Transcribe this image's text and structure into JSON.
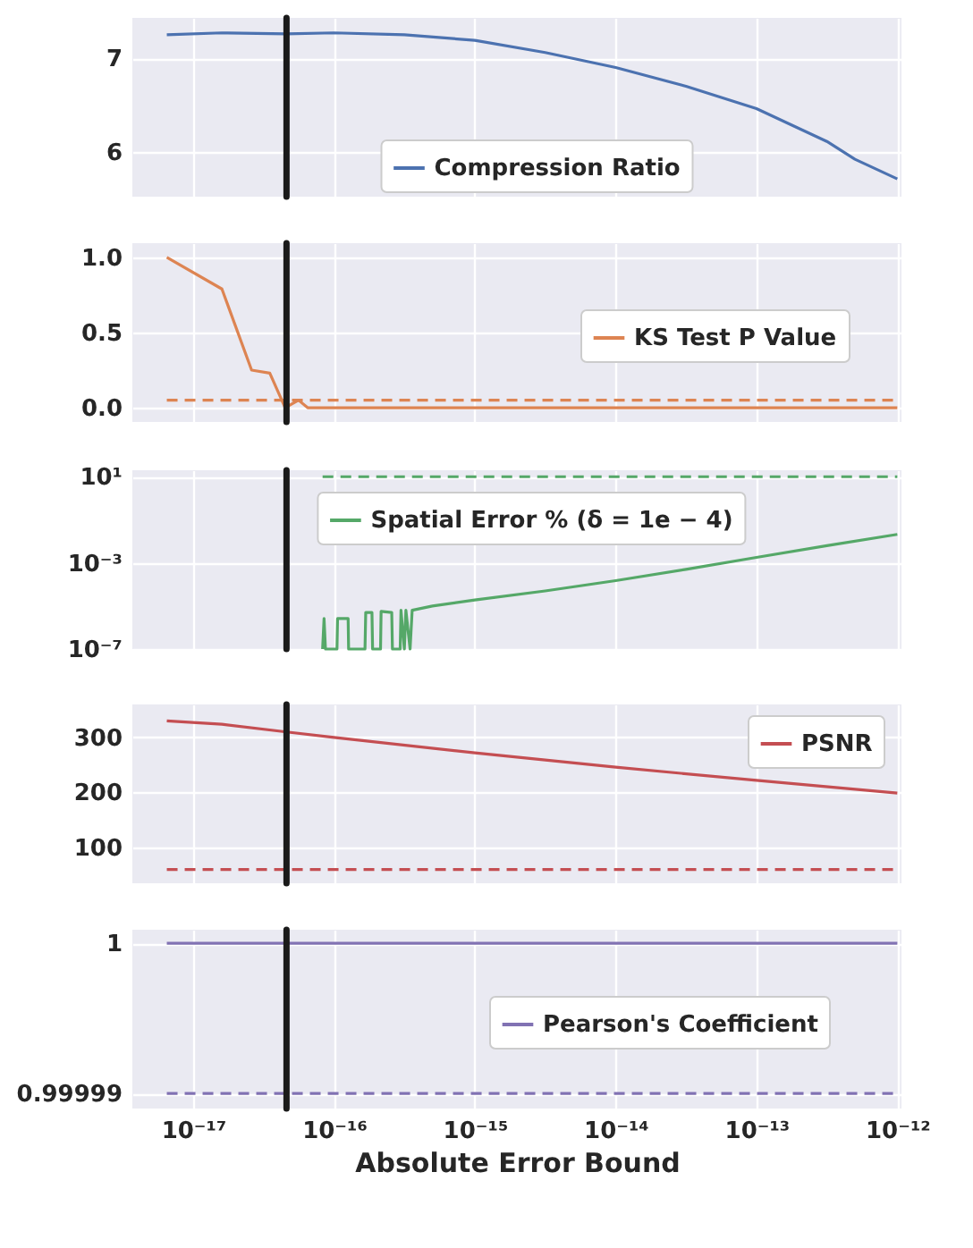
{
  "chart_data": [
    {
      "type": "line",
      "log": "x",
      "grid": true,
      "legend": "bottom",
      "tick_labels": "y",
      "x": [
        6.5e-18,
        1.6e-17,
        4.6e-17,
        1e-16,
        3.16e-16,
        1e-15,
        3.16e-15,
        1e-14,
        3.16e-14,
        1e-13,
        3.16e-13,
        5e-13,
        1e-12
      ],
      "series": [
        {
          "name": "Compression Ratio",
          "color": "#4c72b0",
          "values": [
            7.25,
            7.27,
            7.26,
            7.27,
            7.25,
            7.19,
            7.06,
            6.9,
            6.7,
            6.46,
            6.11,
            5.92,
            5.71
          ]
        }
      ],
      "xlim": [
        3.7e-18,
        1.07e-12
      ],
      "xticks": [
        {
          "value": 1e-17,
          "label": null
        },
        {
          "value": 1e-16,
          "label": null
        },
        {
          "value": 1e-15,
          "label": null
        },
        {
          "value": 1e-14,
          "label": null
        },
        {
          "value": 1e-13,
          "label": null
        },
        {
          "value": 1e-12,
          "label": null
        }
      ],
      "ylim": [
        5.52,
        7.43
      ],
      "yticks": [
        6,
        7
      ],
      "ref_lines": [
        {
          "axis": "x",
          "value": 4.6e-17,
          "color": "#1a1a1a"
        }
      ]
    },
    {
      "type": "line",
      "log": "x",
      "grid": true,
      "legend": "right",
      "tick_labels": "y",
      "x": [
        6.5e-18,
        1.6e-17,
        2.6e-17,
        3.5e-17,
        4.5e-17,
        5.6e-17,
        6.5e-17,
        1e-12
      ],
      "series": [
        {
          "name": "KS Test P Value",
          "color": "#dd8452",
          "values": [
            1.0,
            0.79,
            0.25,
            0.23,
            0.0,
            0.05,
            0.0,
            0.0
          ]
        }
      ],
      "xlim": [
        3.7e-18,
        1.07e-12
      ],
      "xticks": [
        {
          "value": 1e-17,
          "label": null
        },
        {
          "value": 1e-16,
          "label": null
        },
        {
          "value": 1e-15,
          "label": null
        },
        {
          "value": 1e-14,
          "label": null
        },
        {
          "value": 1e-13,
          "label": null
        },
        {
          "value": 1e-12,
          "label": null
        }
      ],
      "ylim": [
        -0.095,
        1.095
      ],
      "yticks": [
        {
          "value": 0,
          "label": "0.0"
        },
        0.5,
        {
          "value": 1,
          "label": "1.0"
        }
      ],
      "ref_lines": [
        {
          "axis": "y",
          "value": 0.05,
          "color": "#dd8452",
          "line_style": "dashed"
        },
        {
          "axis": "x",
          "value": 4.6e-17,
          "color": "#1a1a1a"
        }
      ]
    },
    {
      "type": "line",
      "log": "xy",
      "grid": true,
      "legend": "top",
      "tick_labels": "y",
      "x": [
        8.3e-17,
        8.5e-17,
        8.7e-17,
        1.05e-16,
        1.06e-16,
        1.26e-16,
        1.27e-16,
        1.66e-16,
        1.68e-16,
        1.86e-16,
        1.88e-16,
        2.14e-16,
        2.16e-16,
        2.57e-16,
        2.6e-16,
        2.95e-16,
        2.99e-16,
        3.16e-16,
        3.24e-16,
        3.47e-16,
        3.59e-16,
        5e-16,
        1e-15,
        3.16e-15,
        1e-14,
        3.16e-14,
        1e-13,
        3.16e-13,
        1e-12
      ],
      "series": [
        {
          "name": "Spatial Error % (δ = 1e − 4)",
          "color": "#55a868",
          "values": [
            1e-07,
            2.6e-06,
            1e-07,
            1e-07,
            2.6e-06,
            2.6e-06,
            1e-07,
            1e-07,
            5e-06,
            5e-06,
            1e-07,
            1e-07,
            5.6e-06,
            5e-06,
            1e-07,
            1e-07,
            6.3e-06,
            1e-07,
            6.3e-06,
            1e-07,
            6.3e-06,
            1e-05,
            1.9e-05,
            5e-05,
            0.00015,
            0.0005,
            0.0018,
            0.0063,
            0.021
          ]
        }
      ],
      "xlim": [
        3.7e-18,
        1.07e-12
      ],
      "xticks": [
        {
          "value": 1e-17,
          "label": null
        },
        {
          "value": 1e-16,
          "label": null
        },
        {
          "value": 1e-15,
          "label": null
        },
        {
          "value": 1e-14,
          "label": null
        },
        {
          "value": 1e-13,
          "label": null
        },
        {
          "value": 1e-12,
          "label": null
        }
      ],
      "ylim": [
        1e-07,
        20
      ],
      "yticks": [
        {
          "value": 1e-07,
          "label": "10⁻⁷"
        },
        {
          "value": 0.001,
          "label": "10⁻³"
        },
        {
          "value": 10,
          "label": "10¹"
        }
      ],
      "ref_lines": [
        {
          "axis": "y",
          "value": 10,
          "color": "#55a868",
          "line_style": "dashed"
        },
        {
          "axis": "x",
          "value": 4.6e-17,
          "color": "#1a1a1a"
        }
      ]
    },
    {
      "type": "line",
      "log": "x",
      "grid": true,
      "legend": "top right",
      "tick_labels": "y",
      "x": [
        6.5e-18,
        1.6e-17,
        4.6e-17,
        1e-16,
        1e-15,
        1e-14,
        1e-13,
        1e-12
      ],
      "series": [
        {
          "name": "PSNR",
          "color": "#c44e52",
          "values": [
            330,
            324,
            310,
            300,
            272,
            246,
            222,
            199
          ]
        }
      ],
      "xlim": [
        3.7e-18,
        1.07e-12
      ],
      "xticks": [
        {
          "value": 1e-17,
          "label": null
        },
        {
          "value": 1e-16,
          "label": null
        },
        {
          "value": 1e-15,
          "label": null
        },
        {
          "value": 1e-14,
          "label": null
        },
        {
          "value": 1e-13,
          "label": null
        },
        {
          "value": 1e-12,
          "label": null
        }
      ],
      "ylim": [
        35,
        360
      ],
      "yticks": [
        100,
        200,
        300
      ],
      "ref_lines": [
        {
          "axis": "y",
          "value": 60,
          "color": "#c44e52",
          "line_style": "dashed"
        },
        {
          "axis": "x",
          "value": 4.6e-17,
          "color": "#1a1a1a"
        }
      ]
    },
    {
      "type": "line",
      "log": "x",
      "grid": true,
      "legend": "right",
      "xlabel": "Absolute Error Bound",
      "x": [
        6.5e-18,
        1e-12
      ],
      "series": [
        {
          "name": "Pearson's Coefficient",
          "color": "#8172b3",
          "values": [
            1,
            1
          ]
        }
      ],
      "xlim": [
        3.7e-18,
        1.07e-12
      ],
      "xticks": [
        {
          "value": 1e-17,
          "label": "10⁻¹⁷"
        },
        {
          "value": 1e-16,
          "label": "10⁻¹⁶"
        },
        {
          "value": 1e-15,
          "label": "10⁻¹⁵"
        },
        {
          "value": 1e-14,
          "label": "10⁻¹⁴"
        },
        {
          "value": 1e-13,
          "label": "10⁻¹³"
        },
        {
          "value": 1e-12,
          "label": "10⁻¹²"
        }
      ],
      "ylim": [
        0.999989,
        1.0000009
      ],
      "yticks": [
        0.99999,
        1
      ],
      "ref_lines": [
        {
          "axis": "y",
          "value": 0.99999,
          "color": "#8172b3",
          "line_style": "dashed"
        },
        {
          "axis": "x",
          "value": 4.6e-17,
          "color": "#1a1a1a"
        }
      ]
    }
  ]
}
